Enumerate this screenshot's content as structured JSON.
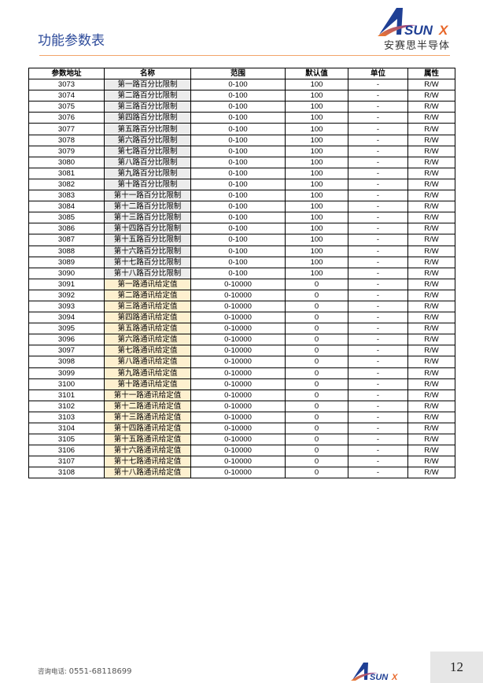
{
  "header": {
    "title": "功能参数表",
    "logo_text": "ASUNX",
    "logo_subtitle": "安赛思半导体"
  },
  "colors": {
    "title": "#2c4a9a",
    "rule": "#f2a46a",
    "name_gray": "#ececec",
    "name_yellow": "#fdf0cf"
  },
  "table": {
    "columns": [
      "参数地址",
      "名称",
      "范围",
      "默认值",
      "单位",
      "属性"
    ],
    "rows": [
      [
        "3073",
        "第一路百分比限制",
        "0-100",
        "100",
        "-",
        "R/W"
      ],
      [
        "3074",
        "第二路百分比限制",
        "0-100",
        "100",
        "-",
        "R/W"
      ],
      [
        "3075",
        "第三路百分比限制",
        "0-100",
        "100",
        "-",
        "R/W"
      ],
      [
        "3076",
        "第四路百分比限制",
        "0-100",
        "100",
        "-",
        "R/W"
      ],
      [
        "3077",
        "第五路百分比限制",
        "0-100",
        "100",
        "-",
        "R/W"
      ],
      [
        "3078",
        "第六路百分比限制",
        "0-100",
        "100",
        "-",
        "R/W"
      ],
      [
        "3079",
        "第七路百分比限制",
        "0-100",
        "100",
        "-",
        "R/W"
      ],
      [
        "3080",
        "第八路百分比限制",
        "0-100",
        "100",
        "-",
        "R/W"
      ],
      [
        "3081",
        "第九路百分比限制",
        "0-100",
        "100",
        "-",
        "R/W"
      ],
      [
        "3082",
        "第十路百分比限制",
        "0-100",
        "100",
        "-",
        "R/W"
      ],
      [
        "3083",
        "第十一路百分比限制",
        "0-100",
        "100",
        "-",
        "R/W"
      ],
      [
        "3084",
        "第十二路百分比限制",
        "0-100",
        "100",
        "-",
        "R/W"
      ],
      [
        "3085",
        "第十三路百分比限制",
        "0-100",
        "100",
        "-",
        "R/W"
      ],
      [
        "3086",
        "第十四路百分比限制",
        "0-100",
        "100",
        "-",
        "R/W"
      ],
      [
        "3087",
        "第十五路百分比限制",
        "0-100",
        "100",
        "-",
        "R/W"
      ],
      [
        "3088",
        "第十六路百分比限制",
        "0-100",
        "100",
        "-",
        "R/W"
      ],
      [
        "3089",
        "第十七路百分比限制",
        "0-100",
        "100",
        "-",
        "R/W"
      ],
      [
        "3090",
        "第十八路百分比限制",
        "0-100",
        "100",
        "-",
        "R/W"
      ],
      [
        "3091",
        "第一路通讯给定值",
        "0-10000",
        "0",
        "-",
        "R/W"
      ],
      [
        "3092",
        "第二路通讯给定值",
        "0-10000",
        "0",
        "-",
        "R/W"
      ],
      [
        "3093",
        "第三路通讯给定值",
        "0-10000",
        "0",
        "-",
        "R/W"
      ],
      [
        "3094",
        "第四路通讯给定值",
        "0-10000",
        "0",
        "-",
        "R/W"
      ],
      [
        "3095",
        "第五路通讯给定值",
        "0-10000",
        "0",
        "-",
        "R/W"
      ],
      [
        "3096",
        "第六路通讯给定值",
        "0-10000",
        "0",
        "-",
        "R/W"
      ],
      [
        "3097",
        "第七路通讯给定值",
        "0-10000",
        "0",
        "-",
        "R/W"
      ],
      [
        "3098",
        "第八路通讯给定值",
        "0-10000",
        "0",
        "-",
        "R/W"
      ],
      [
        "3099",
        "第九路通讯给定值",
        "0-10000",
        "0",
        "-",
        "R/W"
      ],
      [
        "3100",
        "第十路通讯给定值",
        "0-10000",
        "0",
        "-",
        "R/W"
      ],
      [
        "3101",
        "第十一路通讯给定值",
        "0-10000",
        "0",
        "-",
        "R/W"
      ],
      [
        "3102",
        "第十二路通讯给定值",
        "0-10000",
        "0",
        "-",
        "R/W"
      ],
      [
        "3103",
        "第十三路通讯给定值",
        "0-10000",
        "0",
        "-",
        "R/W"
      ],
      [
        "3104",
        "第十四路通讯给定值",
        "0-10000",
        "0",
        "-",
        "R/W"
      ],
      [
        "3105",
        "第十五路通讯给定值",
        "0-10000",
        "0",
        "-",
        "R/W"
      ],
      [
        "3106",
        "第十六路通讯给定值",
        "0-10000",
        "0",
        "-",
        "R/W"
      ],
      [
        "3107",
        "第十七路通讯给定值",
        "0-10000",
        "0",
        "-",
        "R/W"
      ],
      [
        "3108",
        "第十八路通讯给定值",
        "0-10000",
        "0",
        "-",
        "R/W"
      ]
    ]
  },
  "footer": {
    "phone_label": "咨询电话:",
    "phone": "0551-68118699",
    "page_number": "12",
    "logo_text": "ASUNX"
  }
}
